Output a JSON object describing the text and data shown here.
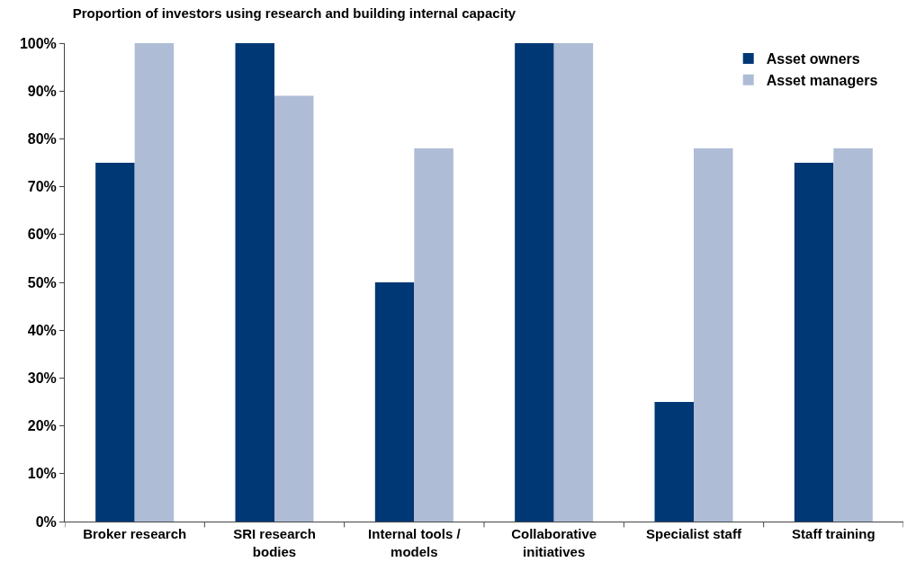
{
  "chart_data": {
    "type": "bar",
    "title": "Proportion of investors using research and building internal capacity",
    "categories": [
      "Broker research",
      "SRI research bodies",
      "Internal tools / models",
      "Collaborative initiatives",
      "Specialist staff",
      "Staff training"
    ],
    "series": [
      {
        "name": "Asset owners",
        "color": "#003775",
        "values": [
          75,
          100,
          50,
          100,
          25,
          75
        ]
      },
      {
        "name": "Asset managers",
        "color": "#aebcd6",
        "values": [
          100,
          89,
          78,
          100,
          78,
          78
        ]
      }
    ],
    "ylim": [
      0,
      100
    ],
    "yticks": [
      {
        "value": 0,
        "label": "0%"
      },
      {
        "value": 10,
        "label": "10%"
      },
      {
        "value": 20,
        "label": "20%"
      },
      {
        "value": 30,
        "label": "30%"
      },
      {
        "value": 40,
        "label": "40%"
      },
      {
        "value": 50,
        "label": "50%"
      },
      {
        "value": 60,
        "label": "60%"
      },
      {
        "value": 70,
        "label": "70%"
      },
      {
        "value": 80,
        "label": "80%"
      },
      {
        "value": 90,
        "label": "90%"
      },
      {
        "value": 100,
        "label": "100%"
      }
    ],
    "legend": "top right"
  }
}
